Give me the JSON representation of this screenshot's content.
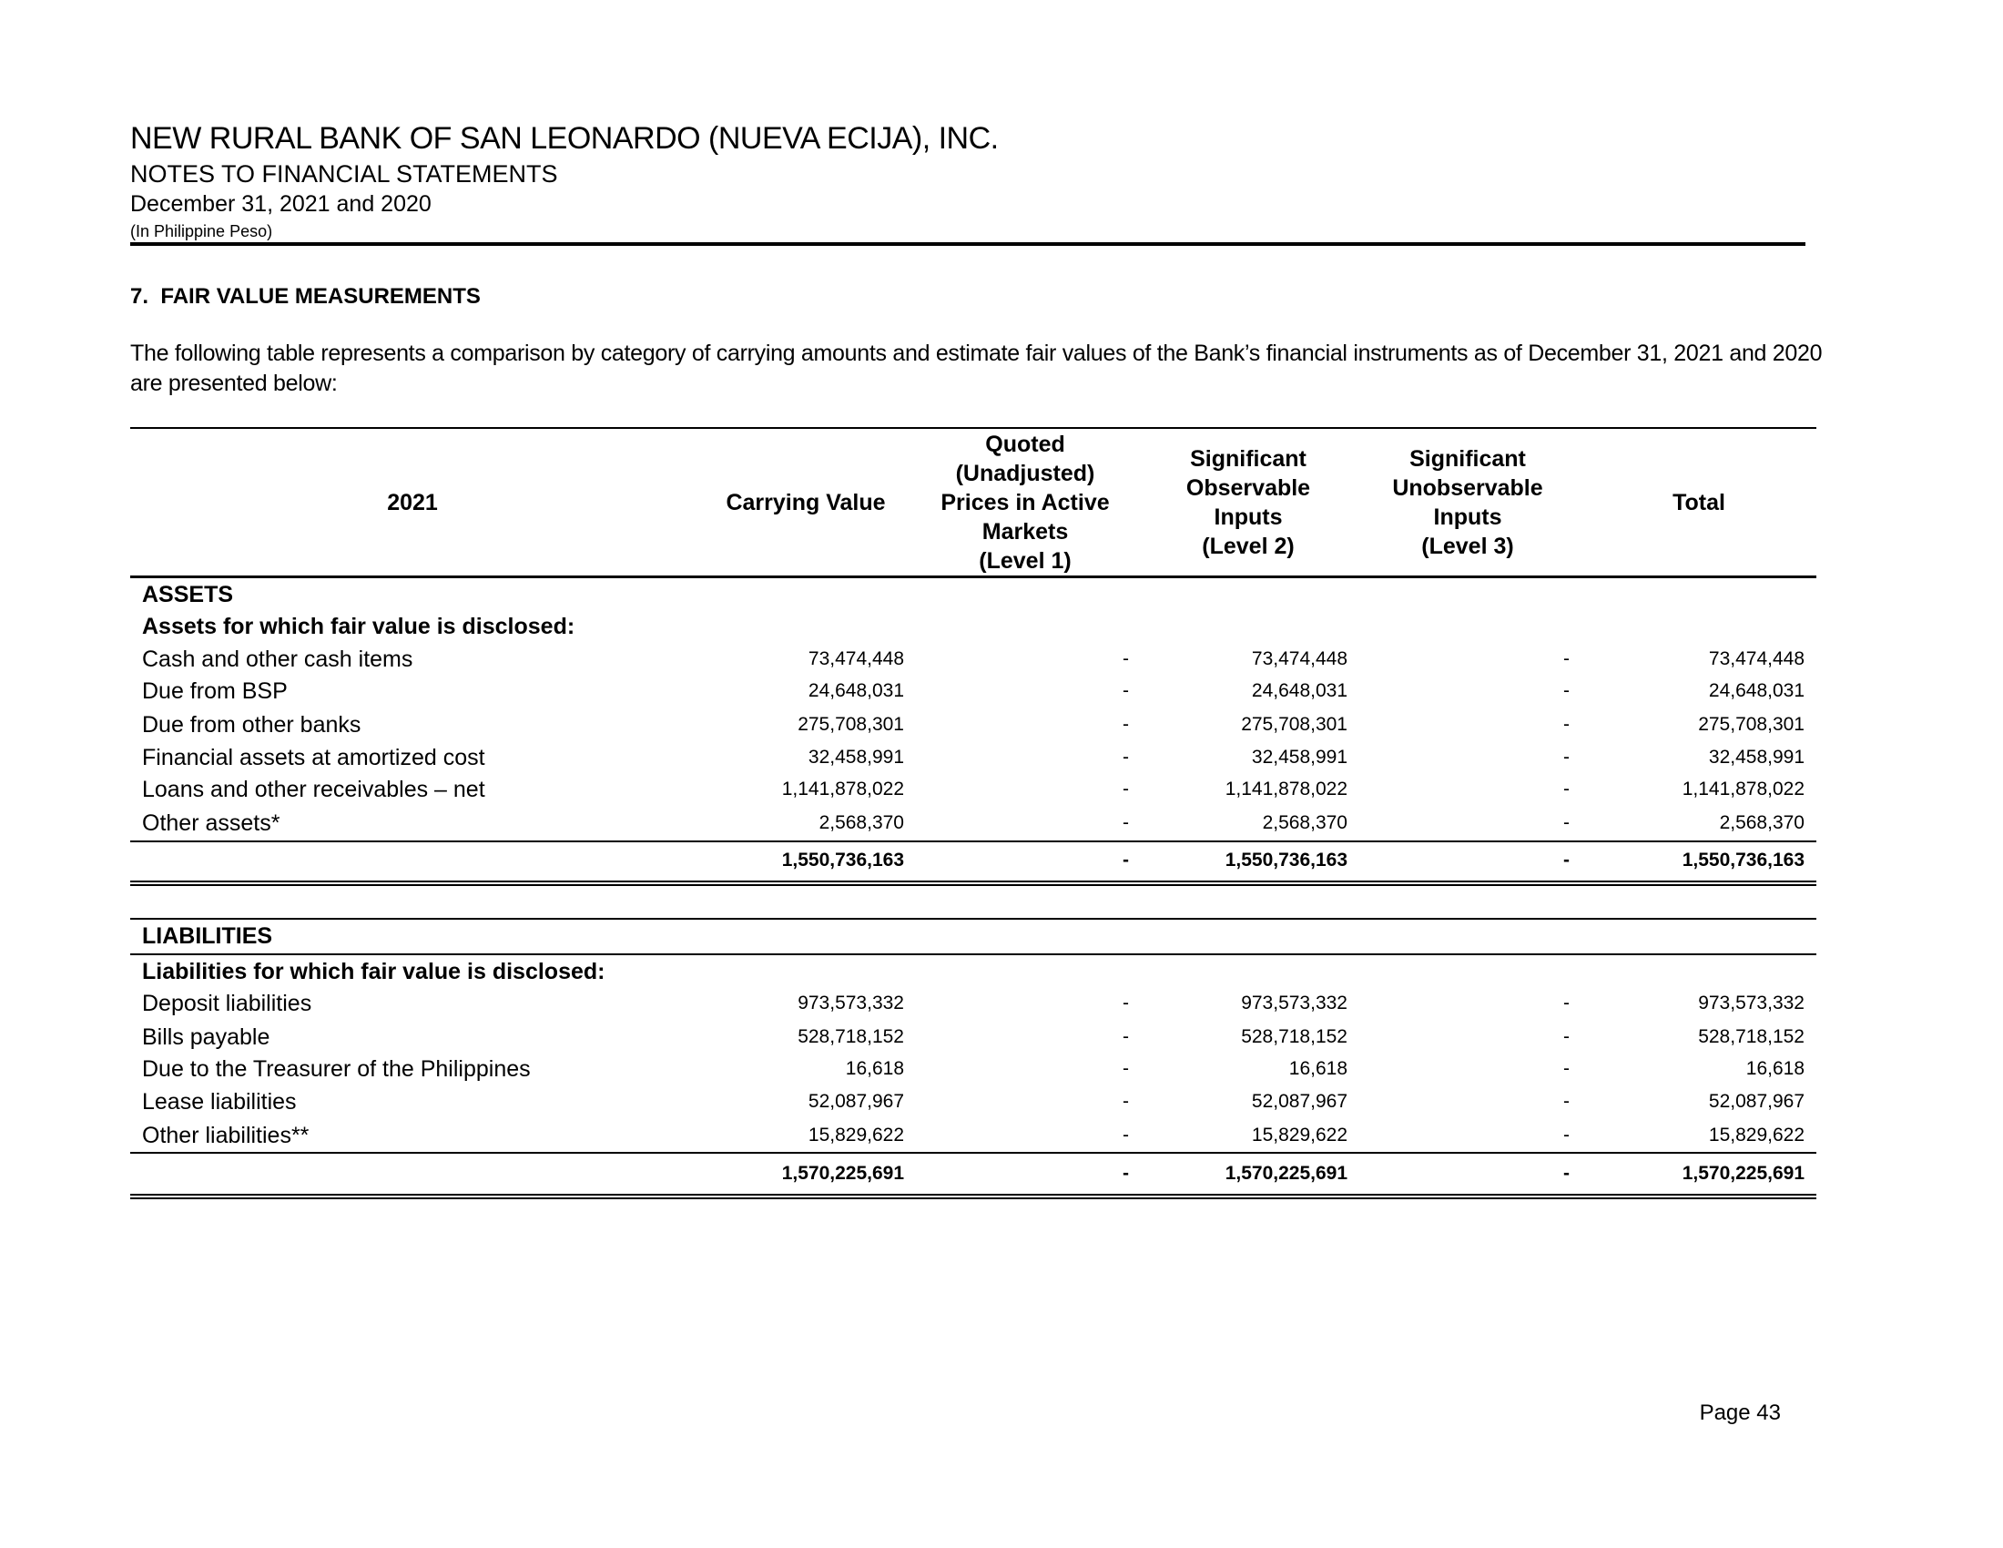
{
  "header": {
    "company": "NEW RURAL BANK OF SAN LEONARDO (NUEVA ECIJA), INC.",
    "subtitle": "NOTES TO FINANCIAL STATEMENTS",
    "period": "December 31, 2021 and 2020",
    "currency": "(In Philippine Peso)"
  },
  "section": {
    "title": "7.  FAIR VALUE MEASUREMENTS",
    "intro": "The following table represents a comparison by category of carrying amounts and estimate fair values of the Bank’s financial instruments as of December 31, 2021 and 2020 are presented below:"
  },
  "table": {
    "columns": [
      [
        "2021"
      ],
      [
        "Carrying Value"
      ],
      [
        "Quoted",
        "(Unadjusted)",
        "Prices in Active",
        "Markets",
        "(Level 1)"
      ],
      [
        "Significant",
        "Observable",
        "Inputs",
        "(Level 2)"
      ],
      [
        "Significant",
        "Unobservable",
        "Inputs",
        "(Level 3)"
      ],
      [
        "Total"
      ]
    ],
    "assets": {
      "heading": "ASSETS",
      "subheading": "Assets for which fair value is disclosed:",
      "rows": [
        [
          "Cash and other cash items",
          "73,474,448",
          "-",
          "73,474,448",
          "-",
          "73,474,448"
        ],
        [
          "Due from BSP",
          "24,648,031",
          "-",
          "24,648,031",
          "-",
          "24,648,031"
        ],
        [
          "Due from other banks",
          "275,708,301",
          "-",
          "275,708,301",
          "-",
          "275,708,301"
        ],
        [
          "Financial assets at amortized cost",
          "32,458,991",
          "-",
          "32,458,991",
          "-",
          "32,458,991"
        ],
        [
          "Loans and other receivables – net",
          "1,141,878,022",
          "-",
          "1,141,878,022",
          "-",
          "1,141,878,022"
        ],
        [
          "Other assets*",
          "2,568,370",
          "-",
          "2,568,370",
          "-",
          "2,568,370"
        ]
      ],
      "total": [
        "1,550,736,163",
        "-",
        "1,550,736,163",
        "-",
        "1,550,736,163"
      ]
    },
    "liabilities": {
      "heading": "LIABILITIES",
      "subheading": "Liabilities for which fair value is disclosed:",
      "rows": [
        [
          "Deposit liabilities",
          "973,573,332",
          "-",
          "973,573,332",
          "-",
          "973,573,332"
        ],
        [
          "Bills payable",
          "528,718,152",
          "-",
          "528,718,152",
          "-",
          "528,718,152"
        ],
        [
          "Due to the Treasurer of the Philippines",
          "16,618",
          "-",
          "16,618",
          "-",
          "16,618"
        ],
        [
          "Lease liabilities",
          "52,087,967",
          "-",
          "52,087,967",
          "-",
          "52,087,967"
        ],
        [
          "Other liabilities**",
          "15,829,622",
          "-",
          "15,829,622",
          "-",
          "15,829,622"
        ]
      ],
      "total": [
        "1,570,225,691",
        "-",
        "1,570,225,691",
        "-",
        "1,570,225,691"
      ]
    }
  },
  "footer": {
    "page": "Page 43"
  }
}
